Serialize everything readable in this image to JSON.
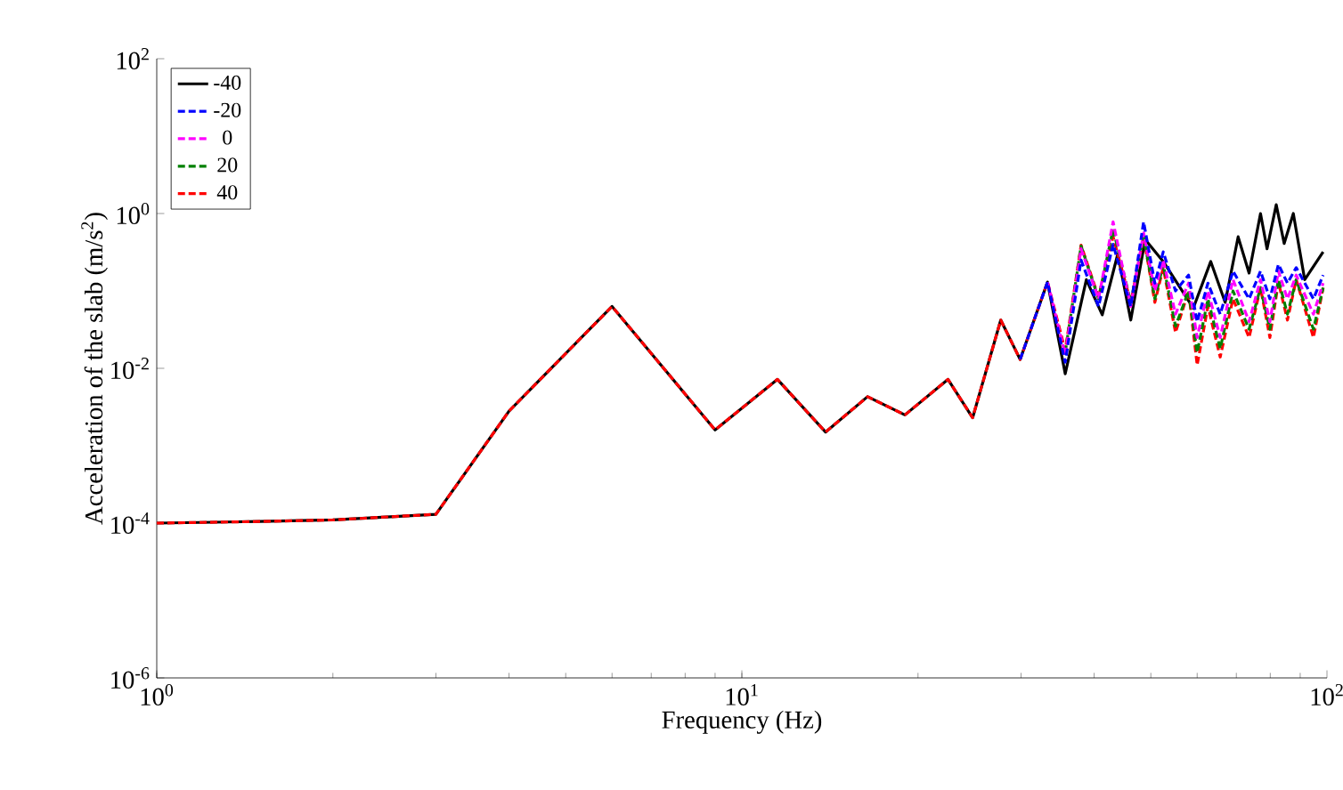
{
  "chart_data": {
    "type": "line",
    "xlabel": "Frequency (Hz)",
    "ylabel": "Acceleration of the slab (m/s$^{2}$)",
    "log": "xy",
    "legend": "top left",
    "xlim": [
      1,
      100
    ],
    "ylim": [
      1e-06,
      100
    ],
    "xticks": [
      {
        "value": 1,
        "label": "10$^{0}$"
      },
      {
        "value": 10,
        "label": "10$^{1}$"
      },
      {
        "value": 100,
        "label": "10$^{2}$"
      }
    ],
    "yticks": [
      {
        "value": 1e-06,
        "label": "10$^{-6}$"
      },
      {
        "value": 0.0001,
        "label": "10$^{-4}$"
      },
      {
        "value": 0.01,
        "label": "10$^{-2}$"
      },
      {
        "value": 1,
        "label": "10$^{0}$"
      },
      {
        "value": 100,
        "label": "10$^{2}$"
      }
    ],
    "series": [
      {
        "name": "-40",
        "color": "#000000",
        "line_style": "solid",
        "x": [
          1,
          1.5,
          2,
          3,
          4,
          6,
          9,
          11.5,
          13.9,
          16.4,
          19,
          22.5,
          24.8,
          27.7,
          29.9,
          33.3,
          35.7,
          38.8,
          41.3,
          43.9,
          46.2,
          48.9,
          52.5,
          59.1,
          63.3,
          67,
          70.5,
          73.6,
          77,
          79,
          81.9,
          84.5,
          87.6,
          91.6,
          98.5
        ],
        "values": [
          0.0001,
          0.000105,
          0.00011,
          0.00013,
          0.0028,
          0.063,
          0.0016,
          0.0072,
          0.0015,
          0.0043,
          0.0025,
          0.0072,
          0.0023,
          0.042,
          0.013,
          0.13,
          0.0085,
          0.14,
          0.049,
          0.3,
          0.042,
          0.46,
          0.24,
          0.06,
          0.24,
          0.071,
          0.5,
          0.17,
          1.0,
          0.35,
          1.3,
          0.41,
          1.0,
          0.14,
          0.32
        ]
      },
      {
        "name": "-20",
        "color": "#0000ff",
        "line_style": "dashed",
        "x": [
          29.9,
          33.3,
          35.7,
          38,
          40.7,
          43.1,
          46.2,
          48.6,
          50.8,
          52.5,
          55.1,
          58,
          60,
          62.6,
          65.7,
          69.1,
          73.6,
          77,
          79.9,
          82.6,
          85.6,
          88.6,
          94.8,
          98.5
        ],
        "values": [
          0.013,
          0.13,
          0.012,
          0.25,
          0.063,
          0.4,
          0.063,
          0.78,
          0.126,
          0.32,
          0.1,
          0.16,
          0.04,
          0.126,
          0.05,
          0.18,
          0.079,
          0.18,
          0.079,
          0.22,
          0.126,
          0.2,
          0.079,
          0.16
        ]
      },
      {
        "name": "0",
        "color": "#ff00ff",
        "line_style": "dashed",
        "x": [
          33.3,
          35.7,
          38,
          40.7,
          43.1,
          46.2,
          48.6,
          50.8,
          52.5,
          55.1,
          58,
          60,
          62.6,
          65.7,
          69.1,
          73.6,
          77,
          79.9,
          82.6,
          85.6,
          88.6,
          94.8,
          98.5
        ],
        "values": [
          0.13,
          0.015,
          0.35,
          0.079,
          0.78,
          0.063,
          0.56,
          0.1,
          0.25,
          0.05,
          0.126,
          0.025,
          0.1,
          0.025,
          0.14,
          0.04,
          0.14,
          0.04,
          0.18,
          0.079,
          0.16,
          0.05,
          0.126
        ]
      },
      {
        "name": "20",
        "color": "#008000",
        "line_style": "dashed",
        "x": [
          35.7,
          38,
          40.7,
          43.1,
          46.2,
          48.6,
          50.8,
          52.5,
          55.1,
          58,
          60,
          62.6,
          65.7,
          69.1,
          73.6,
          77,
          79.9,
          82.6,
          85.6,
          88.6,
          94.8,
          98.5
        ],
        "values": [
          0.016,
          0.38,
          0.079,
          0.63,
          0.071,
          0.5,
          0.079,
          0.22,
          0.035,
          0.1,
          0.016,
          0.079,
          0.018,
          0.1,
          0.032,
          0.11,
          0.032,
          0.14,
          0.05,
          0.14,
          0.032,
          0.11
        ]
      },
      {
        "name": "40",
        "color": "#ff0000",
        "line_style": "dashed",
        "x": [
          1,
          1.5,
          2,
          3,
          4,
          6,
          9,
          11.5,
          13.9,
          16.4,
          19,
          22.5,
          24.8,
          27.7,
          29.9,
          33.3,
          35.7,
          38,
          40.7,
          43.1,
          46.2,
          48.6,
          50.8,
          52.5,
          55.1,
          58,
          60,
          62.6,
          65.7,
          69.1,
          73.6,
          77,
          79.9,
          82.6,
          85.6,
          88.6,
          94.8,
          98.5
        ],
        "values": [
          0.0001,
          0.000105,
          0.00011,
          0.00013,
          0.0028,
          0.063,
          0.0016,
          0.0072,
          0.0015,
          0.0043,
          0.0025,
          0.0072,
          0.0023,
          0.042,
          0.013,
          0.13,
          0.017,
          0.39,
          0.083,
          0.5,
          0.071,
          0.5,
          0.071,
          0.2,
          0.029,
          0.1,
          0.011,
          0.063,
          0.014,
          0.079,
          0.025,
          0.11,
          0.025,
          0.13,
          0.042,
          0.14,
          0.025,
          0.11
        ]
      }
    ]
  }
}
